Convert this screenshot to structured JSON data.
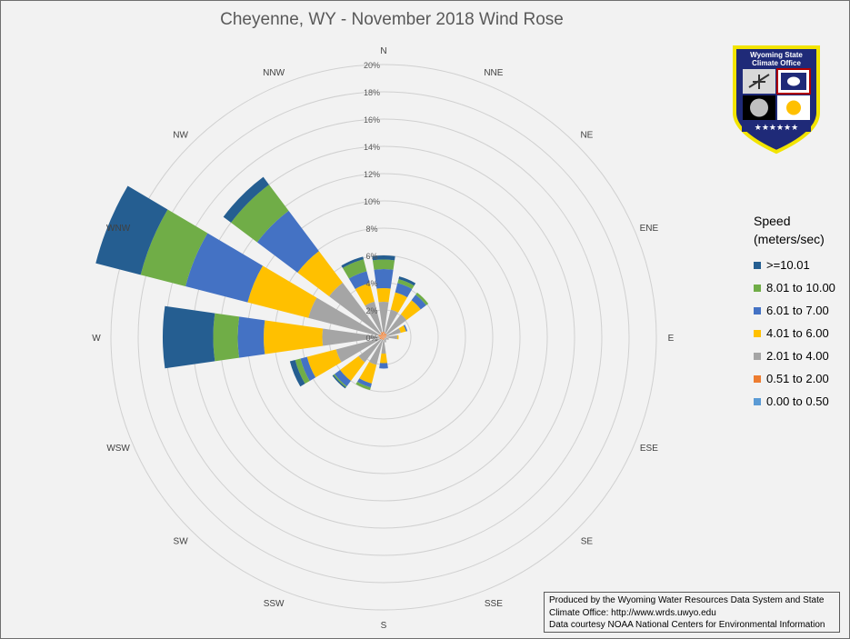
{
  "chart_data": {
    "type": "rose",
    "title": "Cheyenne, WY - November 2018 Wind Rose",
    "directions": [
      "N",
      "NNE",
      "NE",
      "ENE",
      "E",
      "ESE",
      "SE",
      "SSE",
      "S",
      "SSW",
      "SW",
      "WSW",
      "W",
      "WNW",
      "NW",
      "NNW"
    ],
    "radial_ticks": [
      "0%",
      "2%",
      "4%",
      "6%",
      "8%",
      "10%",
      "12%",
      "14%",
      "16%",
      "18%",
      "20%"
    ],
    "rmax": 20,
    "legend_title_line1": "Speed",
    "legend_title_line2": "(meters/sec)",
    "legend_placement": "right",
    "series": [
      {
        "name": "0.00 to 0.50",
        "color": "#5b9bd5",
        "values": [
          0,
          0,
          0,
          0,
          0,
          0,
          0,
          0,
          0,
          0,
          0,
          0,
          0,
          0,
          0,
          0
        ]
      },
      {
        "name": "0.51 to 2.00",
        "color": "#ed7d31",
        "values": [
          0.4,
          0.3,
          0.3,
          0.2,
          0.2,
          0.1,
          0.1,
          0.1,
          0.2,
          0.2,
          0.2,
          0.3,
          0.3,
          0.4,
          0.3,
          0.4
        ]
      },
      {
        "name": "2.01 to 4.00",
        "color": "#a5a5a5",
        "values": [
          2.2,
          1.8,
          1.8,
          1.1,
          0.8,
          0.3,
          0.2,
          0.3,
          1.0,
          1.9,
          2.1,
          3.3,
          4.2,
          5.3,
          4.7,
          2.3
        ]
      },
      {
        "name": "4.01 to 6.00",
        "color": "#ffc000",
        "values": [
          1.0,
          1.3,
          1.3,
          0.4,
          0.1,
          0,
          0,
          0,
          0.7,
          1.4,
          1.7,
          2.2,
          4.3,
          4.6,
          2.9,
          1.4
        ]
      },
      {
        "name": "6.01 to 7.00",
        "color": "#4472c4",
        "values": [
          1.4,
          0.7,
          0.5,
          0.1,
          0,
          0,
          0,
          0,
          0.4,
          0.3,
          0.5,
          0.5,
          1.9,
          4.7,
          3.7,
          0.9
        ]
      },
      {
        "name": "8.01 to 10.00",
        "color": "#70ad47",
        "values": [
          0.7,
          0.3,
          0.2,
          0,
          0,
          0,
          0,
          0,
          0,
          0.2,
          0.1,
          0.4,
          1.8,
          3.4,
          2.4,
          0.9
        ]
      },
      {
        "name": ">=10.01",
        "color": "#255e91",
        "values": [
          0.3,
          0.2,
          0,
          0,
          0,
          0,
          0,
          0,
          0,
          0,
          0.1,
          0.4,
          3.7,
          3.4,
          0.7,
          0.2
        ]
      }
    ],
    "grid": true
  },
  "credit": {
    "line1": "Produced by the Wyoming Water Resources Data System and State",
    "line2": "Climate Office: http://www.wrds.uwyo.edu",
    "line3": "Data courtesy NOAA National Centers for Environmental Information"
  },
  "logo": {
    "line1": "Wyoming State",
    "line2": "Climate Office"
  }
}
